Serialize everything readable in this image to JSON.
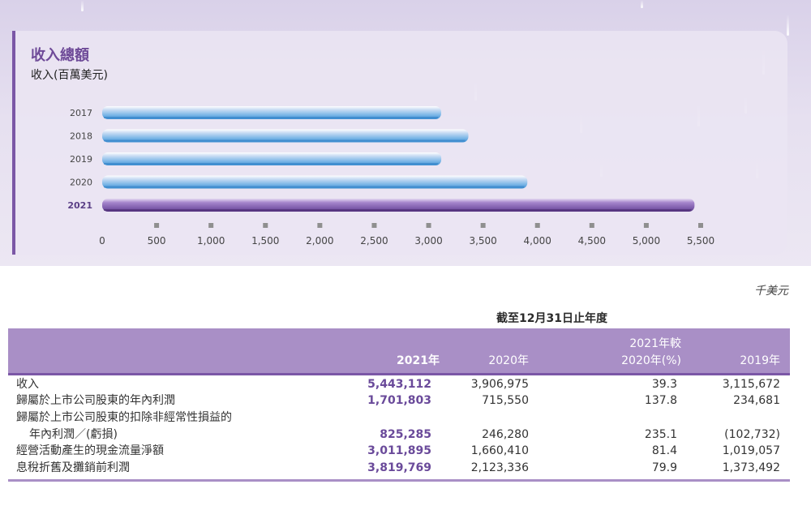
{
  "chart_data": {
    "type": "bar",
    "orientation": "horizontal",
    "title": "收入總額",
    "subtitle": "收入(百萬美元)",
    "categories": [
      "2017",
      "2018",
      "2019",
      "2020",
      "2021"
    ],
    "values": [
      3115,
      3365,
      3116,
      3907,
      5443
    ],
    "highlight_category": "2021",
    "xlim": [
      0,
      5500
    ],
    "xticks": [
      "0",
      "500",
      "1,000",
      "1,500",
      "2,000",
      "2,500",
      "3,000",
      "3,500",
      "4,000",
      "4,500",
      "5,000",
      "5,500"
    ],
    "colors": {
      "bar": "#5aa7e0",
      "highlight_bar": "#7c5aaa",
      "accent": "#7b57a6"
    },
    "grid": false
  },
  "table": {
    "unit": "千美元",
    "period_header": "截至12月31日止年度",
    "columns": {
      "c2021": "2021年",
      "c2020": "2020年",
      "change_line1": "2021年較",
      "change_line2": "2020年(%)",
      "c2019": "2019年"
    },
    "rows": [
      {
        "label": "收入",
        "v2021": "5,443,112",
        "v2020": "3,906,975",
        "change": "39.3",
        "v2019": "3,115,672"
      },
      {
        "label": "歸屬於上市公司股東的年內利潤",
        "v2021": "1,701,803",
        "v2020": "715,550",
        "change": "137.8",
        "v2019": "234,681"
      },
      {
        "label": "歸屬於上市公司股東的扣除非經常性損益的",
        "label2": "年內利潤／(虧損)",
        "v2021": "825,285",
        "v2020": "246,280",
        "change": "235.1",
        "v2019": "(102,732)"
      },
      {
        "label": "經營活動產生的現金流量淨額",
        "v2021": "3,011,895",
        "v2020": "1,660,410",
        "change": "81.4",
        "v2019": "1,019,057"
      },
      {
        "label": "息稅折舊及攤銷前利潤",
        "v2021": "3,819,769",
        "v2020": "2,123,336",
        "change": "79.9",
        "v2019": "1,373,492"
      }
    ]
  }
}
